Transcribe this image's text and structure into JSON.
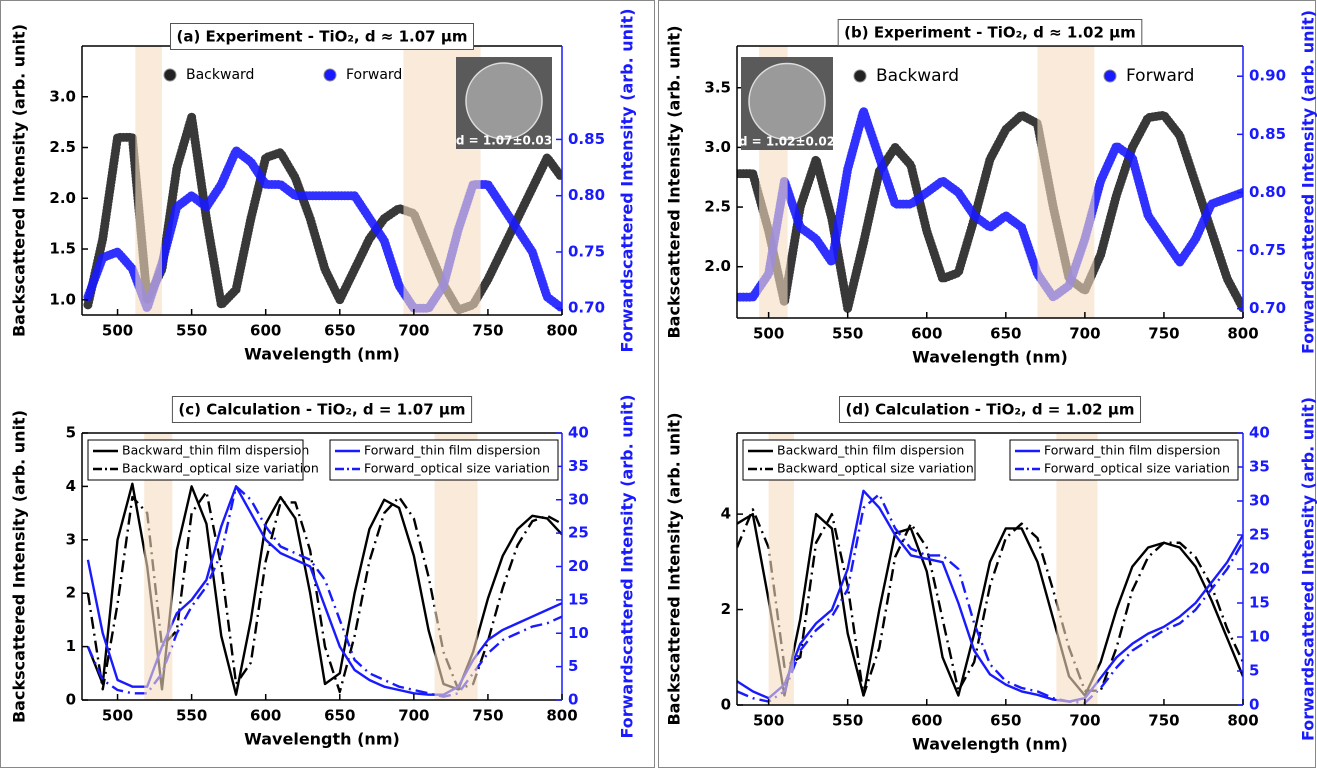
{
  "chart_data": [
    {
      "type": "scatter",
      "title": "(a) Experiment - TiO₂, d ≈ 1.07 μm",
      "xlabel": "Wavelength (nm)",
      "ylabel": "Backscattered Intensity (arb. unit)",
      "y2label": "Forwardscattered Intensity (arb. unit)",
      "x": [
        480,
        490,
        500,
        510,
        520,
        530,
        540,
        550,
        560,
        570,
        580,
        590,
        600,
        610,
        620,
        630,
        640,
        650,
        660,
        670,
        680,
        690,
        700,
        710,
        720,
        730,
        740,
        750,
        760,
        770,
        780,
        790,
        800
      ],
      "series": [
        {
          "name": "Backward",
          "color": "#222222",
          "values": [
            0.95,
            1.6,
            2.6,
            2.6,
            1.0,
            1.3,
            2.3,
            2.8,
            1.8,
            0.95,
            1.1,
            1.8,
            2.4,
            2.45,
            2.2,
            1.8,
            1.3,
            1.0,
            1.3,
            1.6,
            1.8,
            1.9,
            1.85,
            1.5,
            1.15,
            0.9,
            0.95,
            1.2,
            1.5,
            1.8,
            2.1,
            2.4,
            2.2
          ]
        },
        {
          "name": "Forward",
          "color": "#1a1aff",
          "axis": "y2",
          "values": [
            0.71,
            0.745,
            0.75,
            0.735,
            0.7,
            0.74,
            0.79,
            0.8,
            0.79,
            0.81,
            0.84,
            0.83,
            0.81,
            0.81,
            0.8,
            0.8,
            0.8,
            0.8,
            0.8,
            0.78,
            0.76,
            0.72,
            0.7,
            0.7,
            0.72,
            0.77,
            0.81,
            0.81,
            0.79,
            0.77,
            0.75,
            0.71,
            0.7
          ]
        }
      ],
      "xlim": [
        476,
        800
      ],
      "xticks": [
        500,
        550,
        600,
        650,
        700,
        750,
        800
      ],
      "ylim": [
        0.85,
        3.5
      ],
      "yticks": [
        {
          "value": 1,
          "label": "1.0"
        },
        1.5,
        {
          "value": 2,
          "label": "2.0"
        },
        2.5,
        {
          "value": 3,
          "label": "3.0"
        }
      ],
      "y2lim": [
        0.694,
        0.933
      ],
      "y2ticks": [
        {
          "value": 0.7,
          "label": "0.70"
        },
        0.75,
        {
          "value": 0.8,
          "label": "0.80"
        },
        0.85
      ],
      "highlight_ranges": [
        [
          512,
          530
        ],
        [
          693,
          745
        ]
      ],
      "inset_label": "d = 1.07±0.03"
    },
    {
      "type": "scatter",
      "title": "(b) Experiment - TiO₂, d ≈ 1.02 μm",
      "xlabel": "Wavelength (nm)",
      "ylabel": "Backscattered Intensity (arb. unit)",
      "y2label": "Forwardscattered Intensity (arb. unit)",
      "x": [
        480,
        490,
        500,
        510,
        520,
        530,
        540,
        550,
        560,
        570,
        580,
        590,
        600,
        610,
        620,
        630,
        640,
        650,
        660,
        670,
        680,
        690,
        700,
        710,
        720,
        730,
        740,
        750,
        760,
        770,
        780,
        790,
        800
      ],
      "series": [
        {
          "name": "Backward",
          "color": "#222222",
          "values": [
            2.78,
            2.78,
            2.3,
            1.7,
            2.5,
            2.9,
            2.4,
            1.65,
            2.2,
            2.8,
            3.0,
            2.85,
            2.3,
            1.9,
            1.95,
            2.4,
            2.9,
            3.15,
            3.27,
            3.2,
            2.5,
            1.9,
            1.8,
            2.1,
            2.6,
            3.0,
            3.25,
            3.27,
            3.1,
            2.7,
            2.3,
            1.9,
            1.65
          ]
        },
        {
          "name": "Forward",
          "color": "#1a1aff",
          "axis": "y2",
          "values": [
            0.71,
            0.71,
            0.73,
            0.81,
            0.77,
            0.76,
            0.74,
            0.82,
            0.87,
            0.83,
            0.79,
            0.79,
            0.8,
            0.81,
            0.8,
            0.78,
            0.77,
            0.78,
            0.77,
            0.73,
            0.71,
            0.72,
            0.76,
            0.81,
            0.84,
            0.83,
            0.78,
            0.76,
            0.74,
            0.76,
            0.79,
            0.795,
            0.8
          ]
        }
      ],
      "xlim": [
        480,
        800
      ],
      "xticks": [
        500,
        550,
        600,
        650,
        700,
        750,
        800
      ],
      "ylim": [
        1.57,
        3.85
      ],
      "yticks": [
        {
          "value": 2,
          "label": "2.0"
        },
        2.5,
        {
          "value": 3,
          "label": "3.0"
        },
        3.5
      ],
      "y2lim": [
        0.692,
        0.926
      ],
      "y2ticks": [
        {
          "value": 0.7,
          "label": "0.70"
        },
        0.75,
        {
          "value": 0.8,
          "label": "0.80"
        },
        0.85,
        {
          "value": 0.9,
          "label": "0.90"
        }
      ],
      "highlight_ranges": [
        [
          494,
          512
        ],
        [
          670,
          706
        ]
      ],
      "inset_label": "d = 1.02±0.02"
    },
    {
      "type": "line",
      "title": "(c) Calculation - TiO₂, d = 1.07 μm",
      "xlabel": "Wavelength (nm)",
      "ylabel": "Backscattered Intensity (arb. unit)",
      "y2label": "Forwardscattered Intensity (arb. unit)",
      "x": [
        480,
        490,
        500,
        510,
        520,
        530,
        540,
        550,
        560,
        570,
        580,
        590,
        600,
        610,
        620,
        630,
        640,
        650,
        660,
        670,
        680,
        690,
        700,
        710,
        720,
        730,
        740,
        750,
        760,
        770,
        780,
        790,
        800
      ],
      "series": [
        {
          "name": "Backward_thin film dispersion",
          "color": "#000000",
          "style": "solid",
          "values": [
            1.0,
            0.3,
            3.0,
            4.05,
            2.5,
            0.2,
            2.8,
            4.0,
            3.3,
            1.2,
            0.1,
            1.5,
            3.3,
            3.8,
            3.4,
            2.0,
            0.3,
            0.5,
            2.0,
            3.2,
            3.75,
            3.6,
            2.7,
            1.3,
            0.3,
            0.2,
            0.9,
            1.9,
            2.7,
            3.2,
            3.45,
            3.4,
            3.1
          ]
        },
        {
          "name": "Backward_optical size variation",
          "color": "#000000",
          "style": "dashdot",
          "values": [
            2.0,
            0.2,
            1.8,
            3.8,
            3.5,
            1.0,
            1.3,
            3.5,
            3.9,
            2.5,
            0.3,
            0.7,
            2.6,
            3.7,
            3.7,
            2.8,
            1.0,
            0.15,
            1.2,
            2.6,
            3.5,
            3.8,
            3.4,
            2.3,
            0.9,
            0.2,
            0.3,
            1.1,
            2.1,
            2.9,
            3.35,
            3.45,
            3.3
          ]
        },
        {
          "name": "Forward_thin film dispersion",
          "color": "#1a1aff",
          "style": "solid",
          "axis": "y2",
          "values": [
            21,
            10,
            3,
            2,
            2,
            8,
            13,
            15,
            18,
            26,
            32,
            28,
            24,
            22,
            21,
            20,
            14,
            8,
            4.5,
            3,
            2,
            1.5,
            1,
            0.8,
            0.8,
            2,
            6,
            9,
            10.5,
            11.5,
            12.5,
            13.5,
            14.5
          ]
        },
        {
          "name": "Forward_optical size variation",
          "color": "#1a1aff",
          "style": "dashdot",
          "axis": "y2",
          "values": [
            8,
            3,
            1.5,
            1,
            1,
            4,
            10,
            14,
            17,
            22,
            32,
            30,
            26,
            23,
            22,
            21,
            18,
            12,
            6,
            4,
            3,
            2,
            1.5,
            1,
            0.5,
            1,
            4,
            7,
            9,
            10,
            11,
            11.5,
            12.5
          ]
        }
      ],
      "xlim": [
        476,
        800
      ],
      "xticks": [
        500,
        550,
        600,
        650,
        700,
        750,
        800
      ],
      "ylim": [
        0,
        5
      ],
      "yticks": [
        0,
        1,
        2,
        3,
        4,
        5
      ],
      "y2lim": [
        0,
        40
      ],
      "y2ticks": [
        0,
        5,
        10,
        15,
        20,
        25,
        30,
        35,
        40
      ],
      "highlight_ranges": [
        [
          518,
          537
        ],
        [
          714,
          743
        ]
      ]
    },
    {
      "type": "line",
      "title": "(d) Calculation - TiO₂, d = 1.02 μm",
      "xlabel": "Wavelength (nm)",
      "ylabel": "Backscattered Intensity (arb. unit)",
      "y2label": "Forwardscattered Intensity (arb. unit)",
      "x": [
        480,
        490,
        500,
        510,
        520,
        530,
        540,
        550,
        560,
        570,
        580,
        590,
        600,
        610,
        620,
        630,
        640,
        650,
        660,
        670,
        680,
        690,
        700,
        710,
        720,
        730,
        740,
        750,
        760,
        770,
        780,
        790,
        800
      ],
      "series": [
        {
          "name": "Backward_thin film dispersion",
          "color": "#000000",
          "style": "solid",
          "values": [
            3.8,
            4.0,
            2.2,
            0.2,
            1.8,
            4.0,
            3.7,
            1.5,
            0.2,
            2.0,
            3.6,
            3.7,
            2.8,
            1.0,
            0.2,
            1.5,
            3.0,
            3.7,
            3.7,
            3.0,
            1.8,
            0.6,
            0.2,
            0.9,
            2.0,
            2.9,
            3.3,
            3.4,
            3.3,
            2.9,
            2.2,
            1.4,
            0.6
          ]
        },
        {
          "name": "Backward_optical size variation",
          "color": "#000000",
          "style": "dashdot",
          "values": [
            3.3,
            4.1,
            3.3,
            0.8,
            1.0,
            3.4,
            4.0,
            2.5,
            0.2,
            1.2,
            3.1,
            3.8,
            3.3,
            1.8,
            0.3,
            0.9,
            2.5,
            3.5,
            3.8,
            3.5,
            2.4,
            1.2,
            0.3,
            0.3,
            1.2,
            2.4,
            3.1,
            3.4,
            3.4,
            3.1,
            2.5,
            1.6,
            0.9
          ]
        },
        {
          "name": "Forward_thin film dispersion",
          "color": "#1a1aff",
          "style": "solid",
          "axis": "y2",
          "values": [
            3.5,
            2,
            1,
            3,
            9,
            12,
            14,
            20,
            31.5,
            29,
            25,
            22,
            21.5,
            21,
            15,
            8,
            4.5,
            3,
            2,
            1.5,
            0.8,
            0.5,
            1,
            4,
            7,
            9,
            10.5,
            11.5,
            13,
            15,
            18,
            21,
            25
          ]
        },
        {
          "name": "Forward_optical size variation",
          "color": "#1a1aff",
          "style": "dashdot",
          "axis": "y2",
          "values": [
            2,
            1,
            0.5,
            2,
            8,
            11,
            13,
            17,
            29,
            31,
            26,
            23,
            22,
            22,
            20,
            12,
            6,
            3.5,
            2.5,
            2,
            1,
            0.5,
            0.3,
            2.5,
            5.5,
            8,
            9.5,
            11,
            12,
            14,
            17,
            20,
            24
          ]
        }
      ],
      "xlim": [
        480,
        800
      ],
      "xticks": [
        500,
        550,
        600,
        650,
        700,
        750,
        800
      ],
      "ylim": [
        0,
        5.7
      ],
      "yticks": [
        0,
        2,
        4
      ],
      "y2lim": [
        0,
        40
      ],
      "y2ticks": [
        0,
        5,
        10,
        15,
        20,
        25,
        30,
        35,
        40
      ],
      "highlight_ranges": [
        [
          500,
          516
        ],
        [
          682,
          708
        ]
      ]
    }
  ]
}
